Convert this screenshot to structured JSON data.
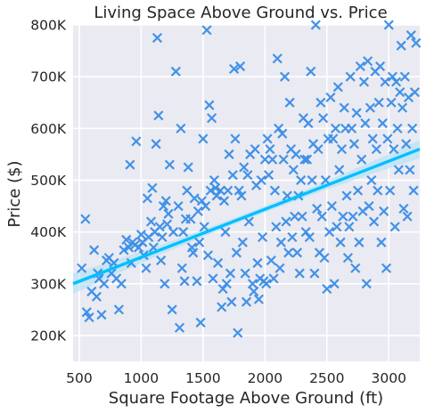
{
  "chart_data": {
    "type": "scatter",
    "title": "Living Space Above Ground vs. Price",
    "xlabel": "Square Footage Above Ground (ft)",
    "ylabel": "Price ($)",
    "xlim": [
      450,
      3250
    ],
    "ylim": [
      150000,
      800000
    ],
    "x_ticks": [
      500,
      1000,
      1500,
      2000,
      2500,
      3000
    ],
    "x_tick_labels": [
      "500",
      "1000",
      "1500",
      "2000",
      "2500",
      "3000"
    ],
    "y_ticks": [
      200000,
      300000,
      400000,
      500000,
      600000,
      700000,
      800000
    ],
    "y_tick_labels": [
      "200K",
      "300K",
      "400K",
      "500K",
      "600K",
      "700K",
      "800K"
    ],
    "grid": true,
    "background": "#eaeaf2",
    "marker": "x",
    "point_color": "#3a8ee6",
    "regression_line": {
      "x": [
        450,
        3250
      ],
      "y": [
        300000,
        560000
      ],
      "color": "#00bfff",
      "ci_color": "#a8def5"
    },
    "series": [
      {
        "points": [
          [
            520,
            330000
          ],
          [
            550,
            425000
          ],
          [
            560,
            245000
          ],
          [
            580,
            235000
          ],
          [
            600,
            285000
          ],
          [
            620,
            365000
          ],
          [
            640,
            275000
          ],
          [
            650,
            320000
          ],
          [
            660,
            310000
          ],
          [
            680,
            240000
          ],
          [
            700,
            300000
          ],
          [
            720,
            345000
          ],
          [
            740,
            350000
          ],
          [
            760,
            320000
          ],
          [
            780,
            340000
          ],
          [
            800,
            310000
          ],
          [
            820,
            250000
          ],
          [
            840,
            300000
          ],
          [
            860,
            365000
          ],
          [
            880,
            385000
          ],
          [
            900,
            370000
          ],
          [
            910,
            530000
          ],
          [
            920,
            340000
          ],
          [
            930,
            380000
          ],
          [
            950,
            375000
          ],
          [
            960,
            575000
          ],
          [
            980,
            370000
          ],
          [
            1000,
            395000
          ],
          [
            1010,
            380000
          ],
          [
            1020,
            355000
          ],
          [
            1040,
            330000
          ],
          [
            1050,
            465000
          ],
          [
            1060,
            390000
          ],
          [
            1080,
            420000
          ],
          [
            1090,
            485000
          ],
          [
            1100,
            370000
          ],
          [
            1110,
            400000
          ],
          [
            1120,
            570000
          ],
          [
            1130,
            775000
          ],
          [
            1140,
            625000
          ],
          [
            1150,
            410000
          ],
          [
            1160,
            345000
          ],
          [
            1170,
            390000
          ],
          [
            1180,
            450000
          ],
          [
            1190,
            300000
          ],
          [
            1200,
            460000
          ],
          [
            1210,
            415000
          ],
          [
            1220,
            435000
          ],
          [
            1230,
            530000
          ],
          [
            1250,
            250000
          ],
          [
            1260,
            400000
          ],
          [
            1280,
            710000
          ],
          [
            1300,
            450000
          ],
          [
            1310,
            215000
          ],
          [
            1320,
            600000
          ],
          [
            1330,
            330000
          ],
          [
            1340,
            400000
          ],
          [
            1350,
            305000
          ],
          [
            1360,
            425000
          ],
          [
            1370,
            480000
          ],
          [
            1380,
            525000
          ],
          [
            1400,
            425000
          ],
          [
            1410,
            370000
          ],
          [
            1420,
            360000
          ],
          [
            1430,
            465000
          ],
          [
            1450,
            305000
          ],
          [
            1460,
            440000
          ],
          [
            1470,
            380000
          ],
          [
            1480,
            225000
          ],
          [
            1490,
            460000
          ],
          [
            1500,
            580000
          ],
          [
            1510,
            410000
          ],
          [
            1520,
            450000
          ],
          [
            1530,
            790000
          ],
          [
            1540,
            355000
          ],
          [
            1550,
            645000
          ],
          [
            1560,
            480000
          ],
          [
            1570,
            620000
          ],
          [
            1580,
            310000
          ],
          [
            1590,
            500000
          ],
          [
            1600,
            485000
          ],
          [
            1610,
            470000
          ],
          [
            1620,
            340000
          ],
          [
            1640,
            480000
          ],
          [
            1650,
            255000
          ],
          [
            1660,
            290000
          ],
          [
            1670,
            460000
          ],
          [
            1680,
            400000
          ],
          [
            1690,
            300000
          ],
          [
            1700,
            480000
          ],
          [
            1710,
            550000
          ],
          [
            1720,
            320000
          ],
          [
            1730,
            265000
          ],
          [
            1740,
            510000
          ],
          [
            1750,
            715000
          ],
          [
            1760,
            580000
          ],
          [
            1770,
            360000
          ],
          [
            1780,
            205000
          ],
          [
            1790,
            480000
          ],
          [
            1800,
            720000
          ],
          [
            1810,
            470000
          ],
          [
            1820,
            380000
          ],
          [
            1830,
            525000
          ],
          [
            1840,
            320000
          ],
          [
            1850,
            265000
          ],
          [
            1860,
            510000
          ],
          [
            1870,
            420000
          ],
          [
            1880,
            550000
          ],
          [
            1900,
            300000
          ],
          [
            1910,
            285000
          ],
          [
            1920,
            560000
          ],
          [
            1930,
            490000
          ],
          [
            1940,
            340000
          ],
          [
            1950,
            270000
          ],
          [
            1960,
            310000
          ],
          [
            1970,
            500000
          ],
          [
            1980,
            390000
          ],
          [
            1990,
            305000
          ],
          [
            2000,
            540000
          ],
          [
            2010,
            300000
          ],
          [
            2020,
            580000
          ],
          [
            2030,
            510000
          ],
          [
            2040,
            560000
          ],
          [
            2050,
            345000
          ],
          [
            2060,
            540000
          ],
          [
            2070,
            310000
          ],
          [
            2080,
            480000
          ],
          [
            2090,
            410000
          ],
          [
            2100,
            735000
          ],
          [
            2110,
            600000
          ],
          [
            2120,
            330000
          ],
          [
            2130,
            380000
          ],
          [
            2140,
            590000
          ],
          [
            2150,
            540000
          ],
          [
            2160,
            700000
          ],
          [
            2170,
            420000
          ],
          [
            2180,
            470000
          ],
          [
            2190,
            360000
          ],
          [
            2200,
            650000
          ],
          [
            2210,
            560000
          ],
          [
            2220,
            390000
          ],
          [
            2230,
            520000
          ],
          [
            2240,
            430000
          ],
          [
            2250,
            550000
          ],
          [
            2260,
            360000
          ],
          [
            2270,
            470000
          ],
          [
            2280,
            320000
          ],
          [
            2290,
            500000
          ],
          [
            2300,
            430000
          ],
          [
            2310,
            620000
          ],
          [
            2320,
            540000
          ],
          [
            2330,
            400000
          ],
          [
            2340,
            540000
          ],
          [
            2350,
            610000
          ],
          [
            2360,
            390000
          ],
          [
            2370,
            710000
          ],
          [
            2380,
            500000
          ],
          [
            2390,
            570000
          ],
          [
            2400,
            320000
          ],
          [
            2410,
            800000
          ],
          [
            2420,
            445000
          ],
          [
            2430,
            560000
          ],
          [
            2440,
            360000
          ],
          [
            2450,
            650000
          ],
          [
            2460,
            430000
          ],
          [
            2470,
            620000
          ],
          [
            2480,
            350000
          ],
          [
            2490,
            500000
          ],
          [
            2500,
            290000
          ],
          [
            2510,
            580000
          ],
          [
            2520,
            400000
          ],
          [
            2530,
            660000
          ],
          [
            2540,
            450000
          ],
          [
            2550,
            580000
          ],
          [
            2560,
            300000
          ],
          [
            2570,
            600000
          ],
          [
            2580,
            410000
          ],
          [
            2590,
            680000
          ],
          [
            2600,
            520000
          ],
          [
            2610,
            380000
          ],
          [
            2620,
            560000
          ],
          [
            2630,
            430000
          ],
          [
            2640,
            640000
          ],
          [
            2650,
            600000
          ],
          [
            2660,
            470000
          ],
          [
            2670,
            350000
          ],
          [
            2680,
            410000
          ],
          [
            2690,
            700000
          ],
          [
            2700,
            600000
          ],
          [
            2710,
            430000
          ],
          [
            2720,
            570000
          ],
          [
            2730,
            330000
          ],
          [
            2740,
            630000
          ],
          [
            2750,
            480000
          ],
          [
            2760,
            380000
          ],
          [
            2770,
            720000
          ],
          [
            2780,
            540000
          ],
          [
            2790,
            440000
          ],
          [
            2800,
            690000
          ],
          [
            2810,
            610000
          ],
          [
            2820,
            300000
          ],
          [
            2830,
            730000
          ],
          [
            2840,
            450000
          ],
          [
            2850,
            640000
          ],
          [
            2860,
            500000
          ],
          [
            2870,
            580000
          ],
          [
            2880,
            420000
          ],
          [
            2890,
            710000
          ],
          [
            2900,
            560000
          ],
          [
            2910,
            480000
          ],
          [
            2920,
            650000
          ],
          [
            2930,
            720000
          ],
          [
            2940,
            380000
          ],
          [
            2950,
            610000
          ],
          [
            2960,
            440000
          ],
          [
            2970,
            690000
          ],
          [
            2980,
            330000
          ],
          [
            2990,
            580000
          ],
          [
            3000,
            800000
          ],
          [
            3010,
            480000
          ],
          [
            3020,
            650000
          ],
          [
            3030,
            700000
          ],
          [
            3040,
            560000
          ],
          [
            3050,
            410000
          ],
          [
            3060,
            690000
          ],
          [
            3070,
            600000
          ],
          [
            3080,
            520000
          ],
          [
            3090,
            670000
          ],
          [
            3100,
            760000
          ],
          [
            3110,
            640000
          ],
          [
            3120,
            445000
          ],
          [
            3130,
            700000
          ],
          [
            3140,
            570000
          ],
          [
            3150,
            430000
          ],
          [
            3160,
            660000
          ],
          [
            3170,
            520000
          ],
          [
            3180,
            780000
          ],
          [
            3190,
            600000
          ],
          [
            3200,
            480000
          ],
          [
            3210,
            670000
          ],
          [
            3220,
            765000
          ]
        ]
      }
    ]
  }
}
